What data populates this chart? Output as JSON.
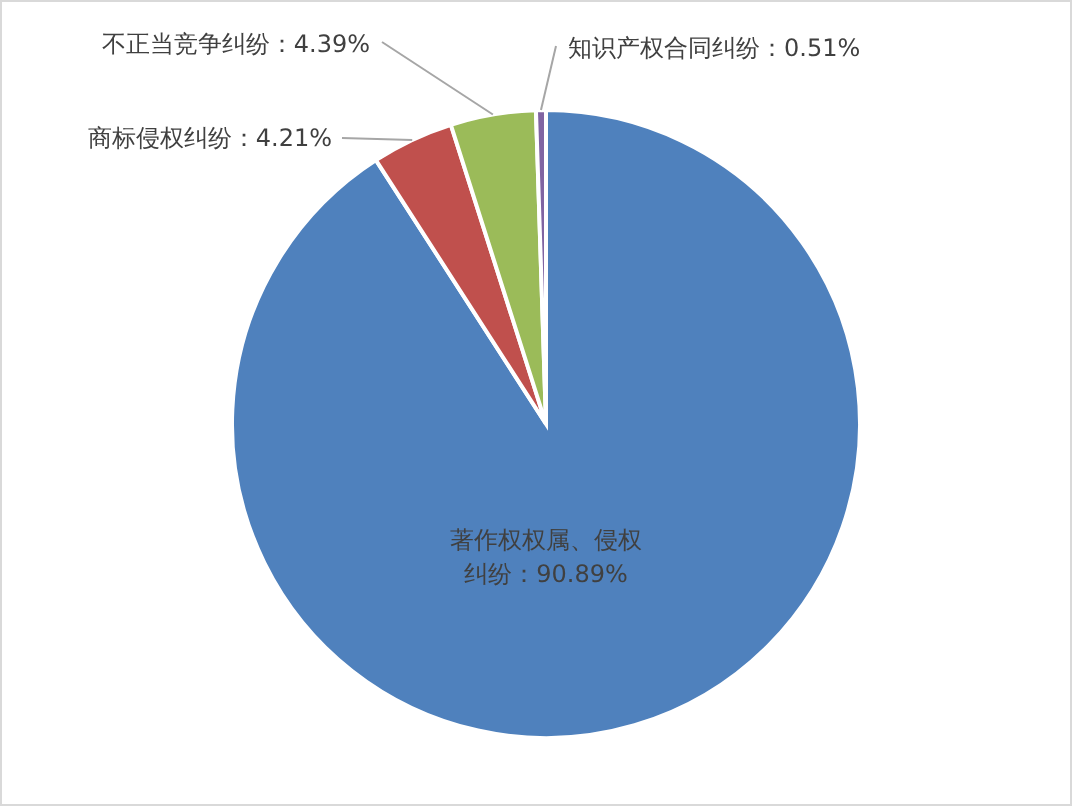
{
  "chart_data": {
    "type": "pie",
    "categories": [
      "著作权权属、侵权纠纷",
      "商标侵权纠纷",
      "不正当竞争纠纷",
      "知识产权合同纠纷"
    ],
    "values": [
      90.89,
      4.21,
      4.39,
      0.51
    ],
    "value_labels": [
      "90.89%",
      "4.21%",
      "4.39%",
      "0.51%"
    ],
    "colors": [
      "#4f81bd",
      "#c0504d",
      "#9bbb59",
      "#8064a2"
    ],
    "legend": false
  }
}
